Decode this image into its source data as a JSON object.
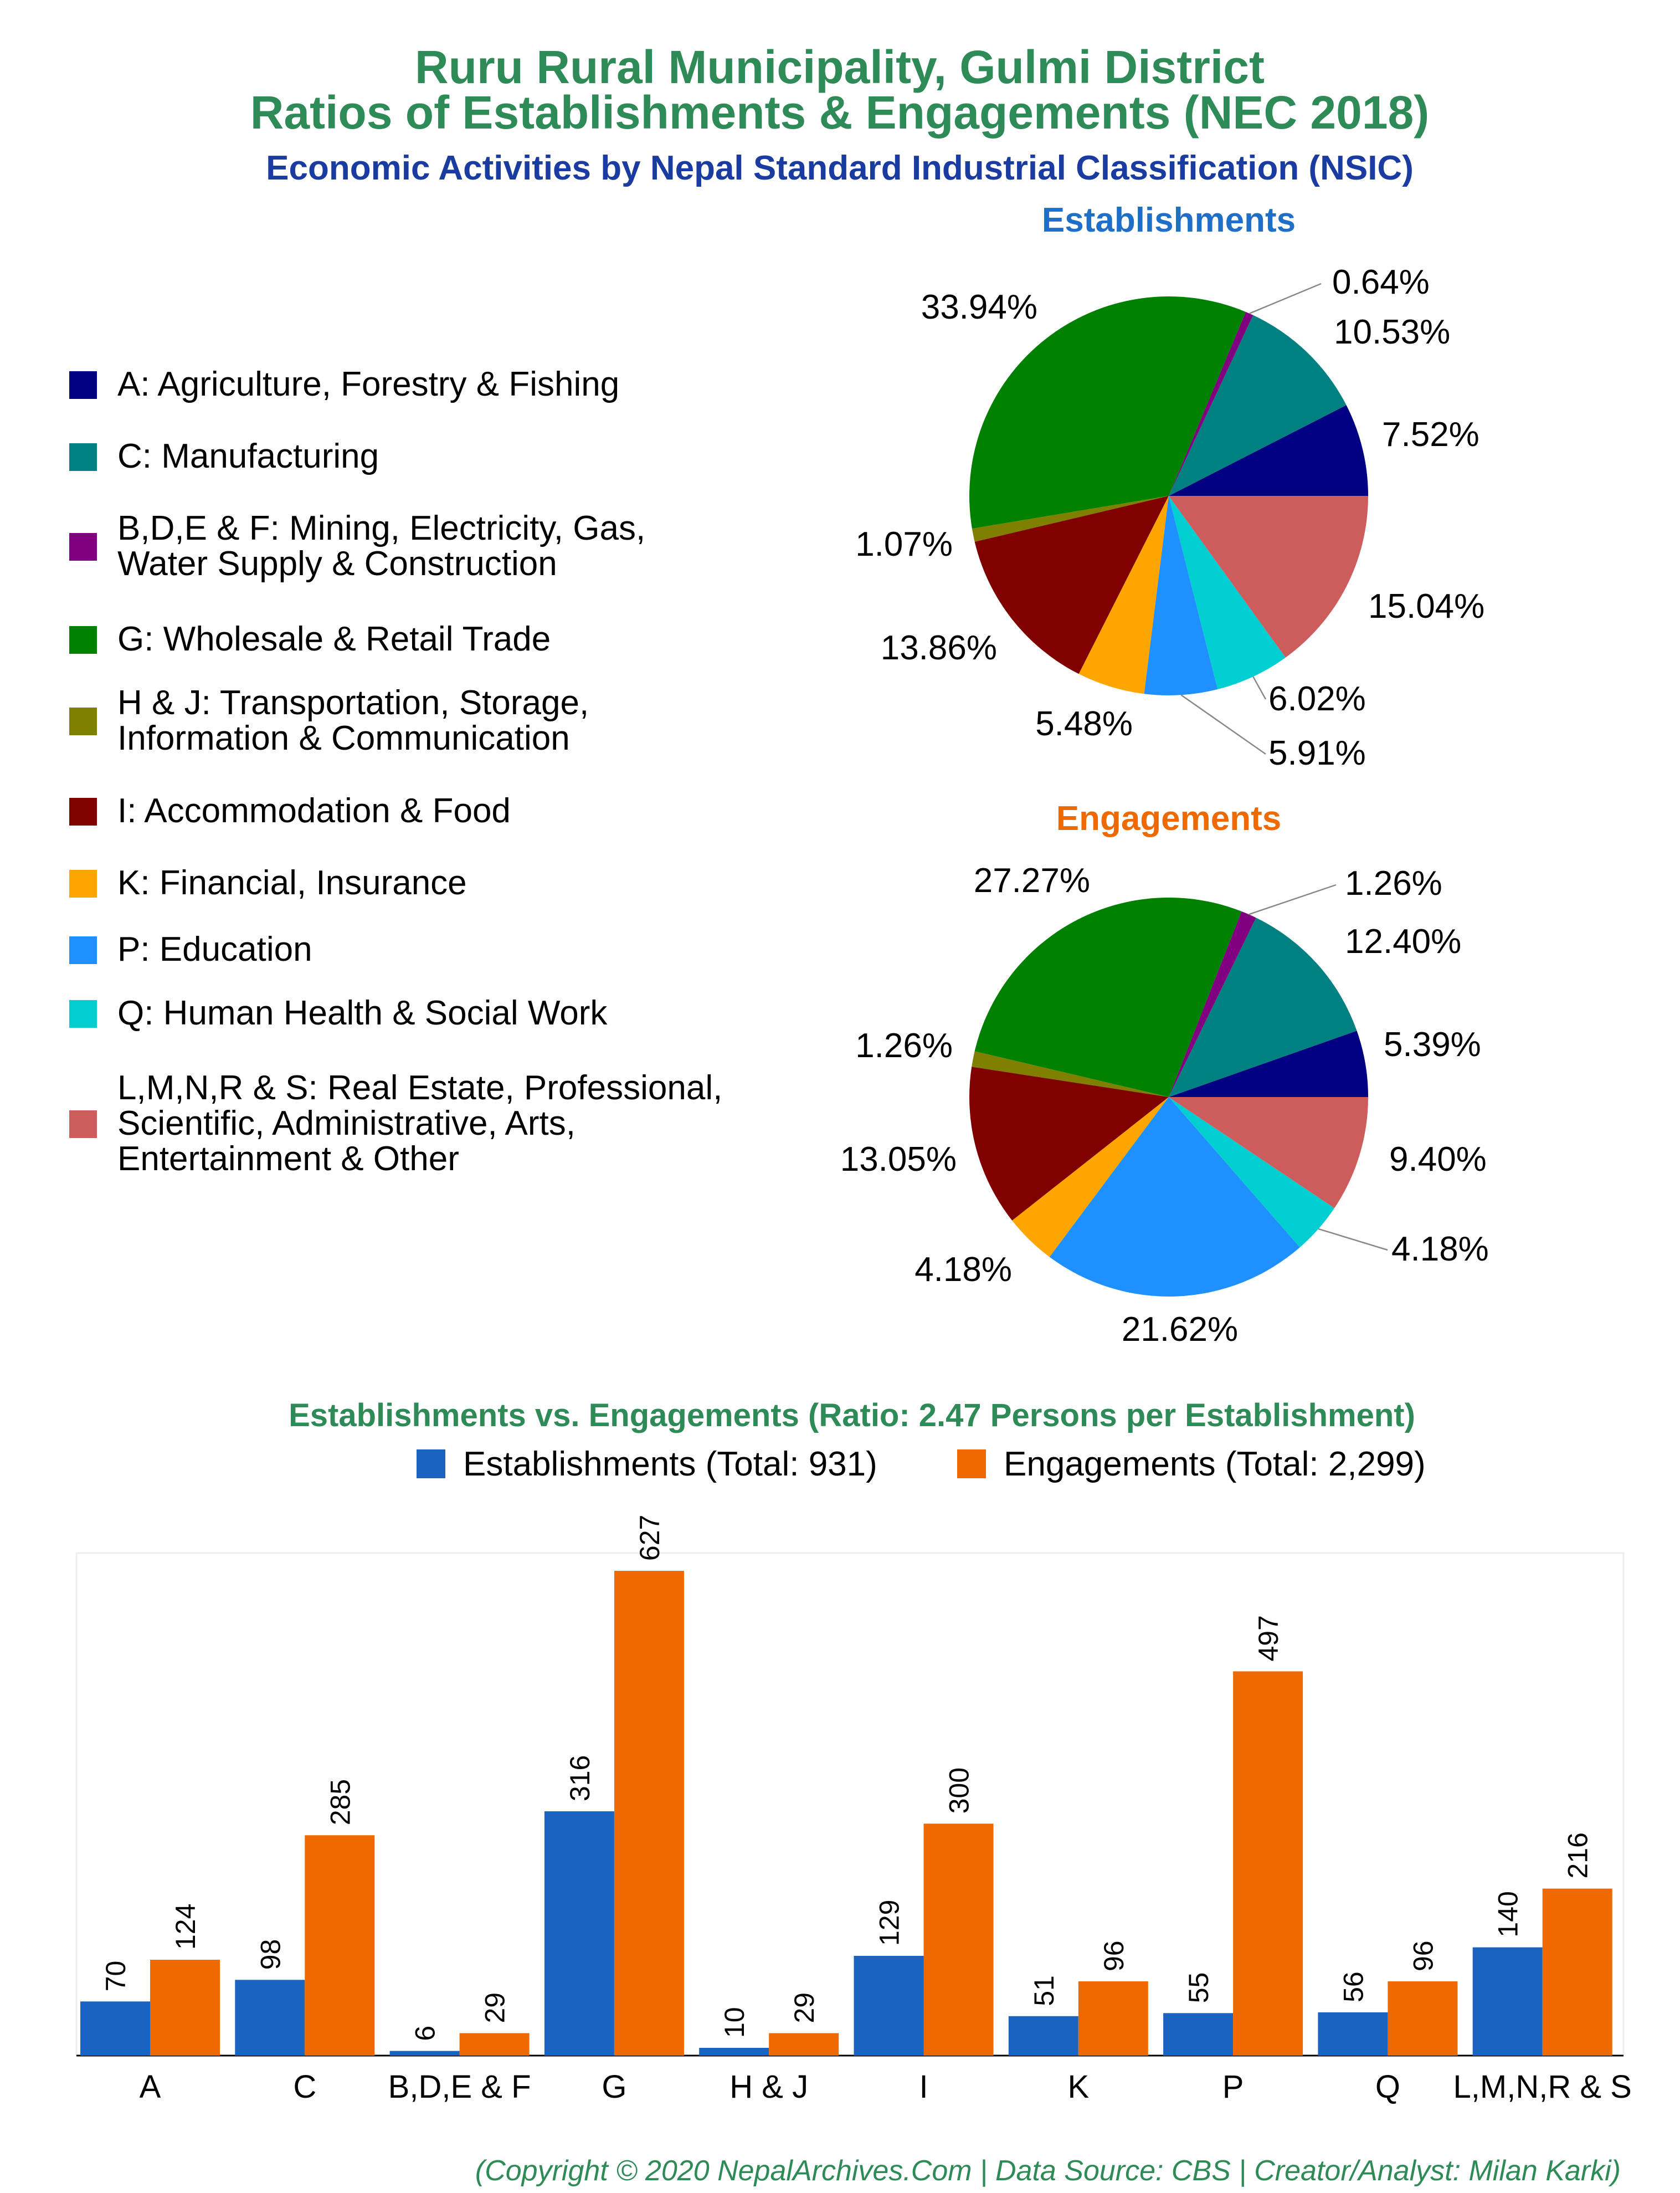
{
  "header": {
    "title_line1": "Ruru Rural Municipality, Gulmi District",
    "title_line2": "Ratios of Establishments & Engagements (NEC 2018)",
    "subtitle": "Economic Activities by Nepal Standard Industrial Classification (NSIC)"
  },
  "colors": {
    "title": "#2e8b57",
    "subtitle": "#1a3ca0",
    "establishments_title": "#1f6fc8",
    "engagements_title": "#ee6a00",
    "bar_establishments": "#1a63c0",
    "bar_engagements": "#ee6a00"
  },
  "legend": {
    "items": [
      {
        "label": "A: Agriculture, Forestry & Fishing",
        "color": "#000080"
      },
      {
        "label": "C: Manufacturing",
        "color": "#008080"
      },
      {
        "label": "B,D,E & F: Mining, Electricity, Gas,\nWater Supply & Construction",
        "color": "#800080"
      },
      {
        "label": "G: Wholesale & Retail Trade",
        "color": "#008000"
      },
      {
        "label": "H & J: Transportation, Storage,\nInformation & Communication",
        "color": "#808000"
      },
      {
        "label": "I: Accommodation & Food",
        "color": "#800000"
      },
      {
        "label": "K: Financial, Insurance",
        "color": "#ffa500"
      },
      {
        "label": "P: Education",
        "color": "#1e90ff"
      },
      {
        "label": "Q: Human Health & Social Work",
        "color": "#00ced1"
      },
      {
        "label": "L,M,N,R & S: Real Estate, Professional,\nScientific, Administrative, Arts,\nEntertainment & Other",
        "color": "#cd5c5c"
      }
    ]
  },
  "footer": {
    "copyright": "(Copyright © 2020 NepalArchives.Com | Data Source: CBS | Creator/Analyst: Milan Karki)"
  },
  "chart_data": [
    {
      "type": "pie",
      "title": "Establishments",
      "categories": [
        "A",
        "C",
        "B,D,E & F",
        "G",
        "H & J",
        "I",
        "K",
        "P",
        "Q",
        "L,M,N,R & S"
      ],
      "values": [
        7.52,
        10.53,
        0.64,
        33.94,
        1.07,
        13.86,
        5.48,
        5.91,
        6.02,
        15.04
      ],
      "labels": [
        "7.52%",
        "10.53%",
        "0.64%",
        "33.94%",
        "1.07%",
        "13.86%",
        "5.48%",
        "5.91%",
        "6.02%",
        "15.04%"
      ]
    },
    {
      "type": "pie",
      "title": "Engagements",
      "categories": [
        "A",
        "C",
        "B,D,E & F",
        "G",
        "H & J",
        "I",
        "K",
        "P",
        "Q",
        "L,M,N,R & S"
      ],
      "values": [
        5.39,
        12.4,
        1.26,
        27.27,
        1.26,
        13.05,
        4.18,
        21.62,
        4.18,
        9.4
      ],
      "labels": [
        "5.39%",
        "12.40%",
        "1.26%",
        "27.27%",
        "1.26%",
        "13.05%",
        "4.18%",
        "21.62%",
        "4.18%",
        "9.40%"
      ]
    },
    {
      "type": "bar",
      "title": "Establishments vs. Engagements (Ratio: 2.47 Persons per Establishment)",
      "categories": [
        "A",
        "C",
        "B,D,E & F",
        "G",
        "H & J",
        "I",
        "K",
        "P",
        "Q",
        "L,M,N,R & S"
      ],
      "series": [
        {
          "name": "Establishments (Total: 931)",
          "values": [
            70,
            98,
            6,
            316,
            10,
            129,
            51,
            55,
            56,
            140
          ]
        },
        {
          "name": "Engagements (Total: 2,299)",
          "values": [
            124,
            285,
            29,
            627,
            29,
            300,
            96,
            497,
            96,
            216
          ]
        }
      ],
      "ylim": [
        0,
        650
      ],
      "legend": "top-right",
      "grid": false
    }
  ]
}
